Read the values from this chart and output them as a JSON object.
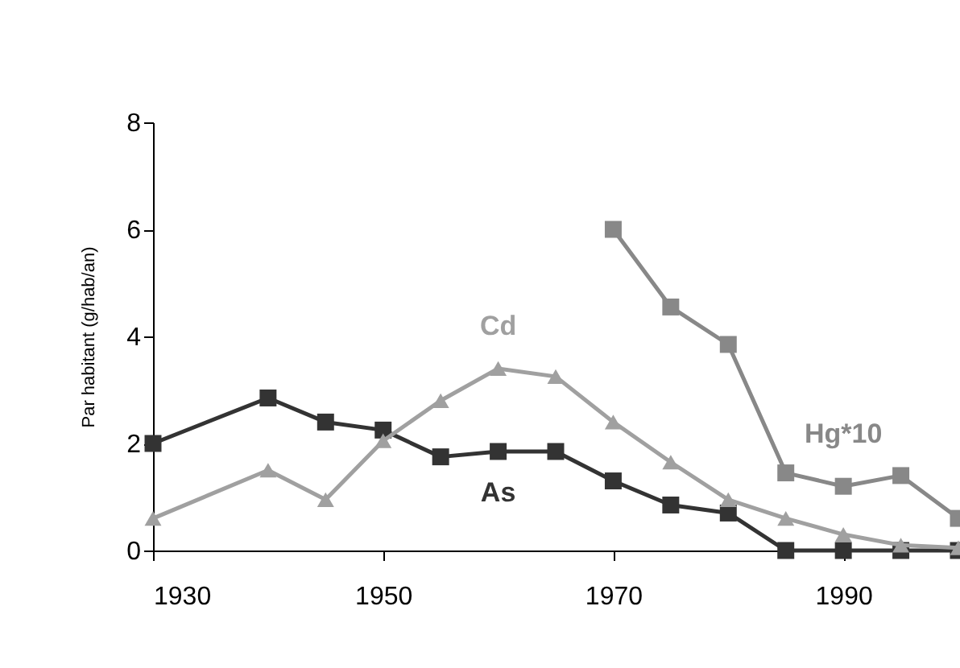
{
  "chart_data": {
    "type": "line",
    "ylabel": "Par habitant (g/hab/an)",
    "x": [
      1930,
      1940,
      1945,
      1950,
      1955,
      1960,
      1965,
      1970,
      1975,
      1980,
      1985,
      1990,
      1995,
      2000
    ],
    "series": [
      {
        "name": "As",
        "color": "#333333",
        "marker": "square",
        "values": [
          2.0,
          2.85,
          2.4,
          2.25,
          1.75,
          1.85,
          1.85,
          1.3,
          0.85,
          0.7,
          0,
          0,
          0,
          0
        ]
      },
      {
        "name": "Cd",
        "color": "#a0a0a0",
        "marker": "triangle",
        "values": [
          0.6,
          1.5,
          0.95,
          2.05,
          2.8,
          3.4,
          3.25,
          2.4,
          1.65,
          0.95,
          0.6,
          0.3,
          0.1,
          0.05
        ]
      },
      {
        "name": "Hg*10",
        "color": "#888888",
        "marker": "square",
        "values": [
          null,
          null,
          null,
          null,
          null,
          null,
          null,
          6.0,
          4.55,
          3.85,
          1.45,
          1.2,
          1.4,
          0.6
        ]
      }
    ],
    "xlim": [
      1930,
      2000
    ],
    "xticks": [
      1930,
      1950,
      1970,
      1990
    ],
    "ylim": [
      0,
      8
    ],
    "yticks": [
      0,
      2,
      4,
      6,
      8
    ],
    "grid": false,
    "line_style": "solid"
  }
}
